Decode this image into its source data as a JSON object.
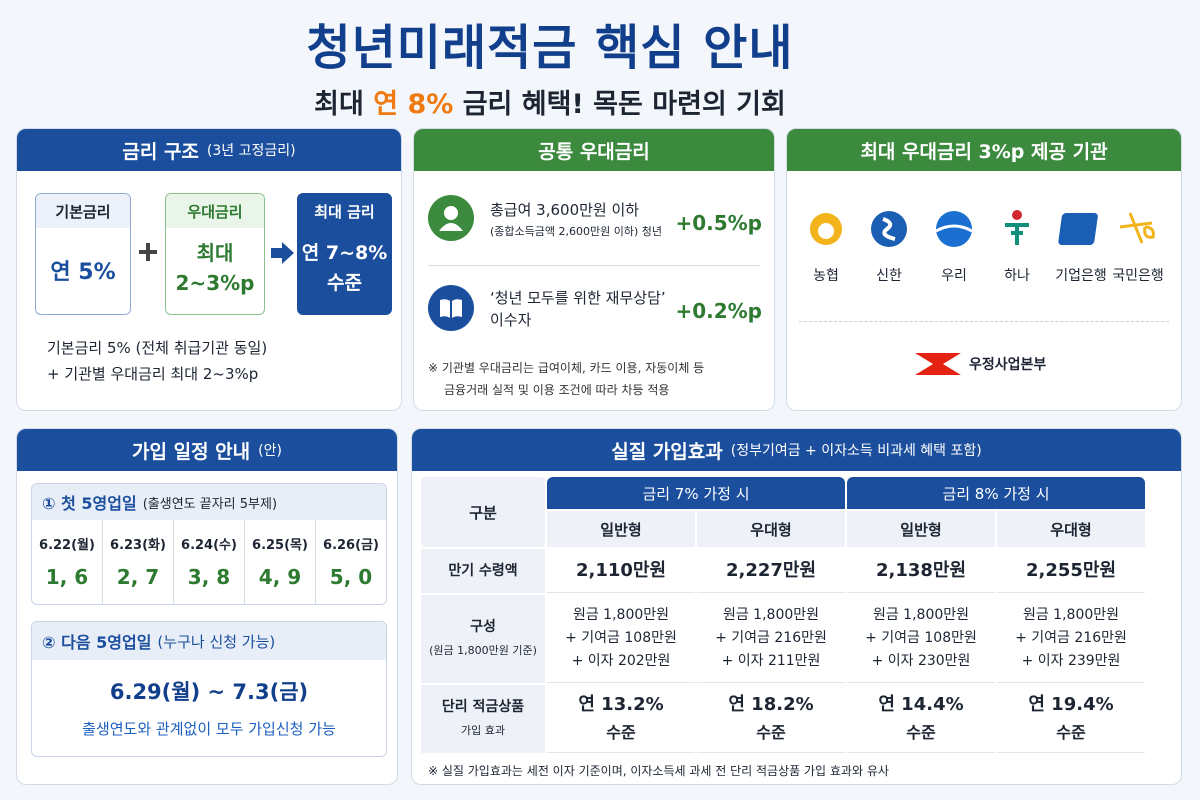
{
  "header": {
    "title": "청년미래적금 핵심 안내",
    "subtitle": [
      "최대 ",
      "연 8%",
      " 금리 혜택! 목돈 마련의 기회"
    ]
  },
  "rate_structure": {
    "title": "금리 구조",
    "title_note": "(3년 고정금리)",
    "base": {
      "label": "기본금리",
      "lines": [
        "연 5%"
      ]
    },
    "preferential": {
      "label": "우대금리",
      "lines": [
        "최대",
        "2~3%p"
      ]
    },
    "max": {
      "label": "최대 금리",
      "lines": [
        "연 7~8%",
        "수준"
      ]
    },
    "notes": [
      "기본금리 5% (전체 취급기관 동일)",
      "+ 기관별 우대금리 최대 2~3%p"
    ]
  },
  "common_preferential": {
    "title": "공통 우대금리",
    "items": [
      {
        "lines": [
          "총급여 3,600만원 이하",
          "(종합소득금액 2,600만원 이하) 청년"
        ],
        "rate": "+0.5%p"
      },
      {
        "lines": [
          "‘청년 모두를 위한 재무상담’",
          "이수자"
        ],
        "rate": "+0.2%p"
      }
    ],
    "note": [
      "※ 기관별 우대금리는 급여이체, 카드 이용, 자동이체 등",
      "금융거래 실적 및 이용 조건에 따라 차등 적용"
    ]
  },
  "institutions": {
    "title": "최대 우대금리 3%p 제공 기관",
    "banks": [
      "농협",
      "신한",
      "우리",
      "하나",
      "기업은행",
      "국민은행"
    ],
    "extra": "우정사업본부"
  },
  "schedule": {
    "title": "가입 일정 안내",
    "title_note": "(안)",
    "phase1": {
      "title": "① 첫 5영업일",
      "note": "(출생연도 끝자리 5부제)",
      "days": [
        {
          "date": "6.22(월)",
          "digits": "1, 6"
        },
        {
          "date": "6.23(화)",
          "digits": "2, 7"
        },
        {
          "date": "6.24(수)",
          "digits": "3, 8"
        },
        {
          "date": "6.25(목)",
          "digits": "4, 9"
        },
        {
          "date": "6.26(금)",
          "digits": "5, 0"
        }
      ]
    },
    "phase2": {
      "title": "② 다음 5영업일",
      "note": "(누구나 신청 가능)",
      "dates": "6.29(월) ~ 7.3(금)",
      "desc": "출생연도와 관계없이 모두 가입신청 가능"
    }
  },
  "effect": {
    "title": "실질 가입효과",
    "title_note": "(정부기여금 + 이자소득 비과세 혜택 포함)",
    "table": {
      "corner": "구분",
      "groups": [
        "금리 7% 가정 시",
        "금리 8% 가정 시"
      ],
      "columns": [
        "일반형",
        "우대형",
        "일반형",
        "우대형"
      ],
      "rows": [
        {
          "label": [
            "만기 수령액"
          ],
          "cells": [
            [
              "2,110만원"
            ],
            [
              "2,227만원"
            ],
            [
              "2,138만원"
            ],
            [
              "2,255만원"
            ]
          ]
        },
        {
          "label": [
            "구성",
            "(원금 1,800만원 기준)"
          ],
          "cells": [
            [
              "원금 1,800만원",
              "+ 기여금 108만원",
              "+ 이자 202만원"
            ],
            [
              "원금 1,800만원",
              "+ 기여금 216만원",
              "+ 이자 211만원"
            ],
            [
              "원금 1,800만원",
              "+ 기여금 108만원",
              "+ 이자 230만원"
            ],
            [
              "원금 1,800만원",
              "+ 기여금 216만원",
              "+ 이자 239만원"
            ]
          ]
        },
        {
          "label": [
            "단리 적금상품",
            "가입 효과"
          ],
          "cells": [
            [
              "연 13.2%",
              "수준"
            ],
            [
              "연 18.2%",
              "수준"
            ],
            [
              "연 14.4%",
              "수준"
            ],
            [
              "연 19.4%",
              "수준"
            ]
          ]
        }
      ]
    },
    "note": "※ 실질 가입효과는 세전 이자 기준이며, 이자소득세 과세 전 단리 적금상품 가입 효과와 유사"
  }
}
